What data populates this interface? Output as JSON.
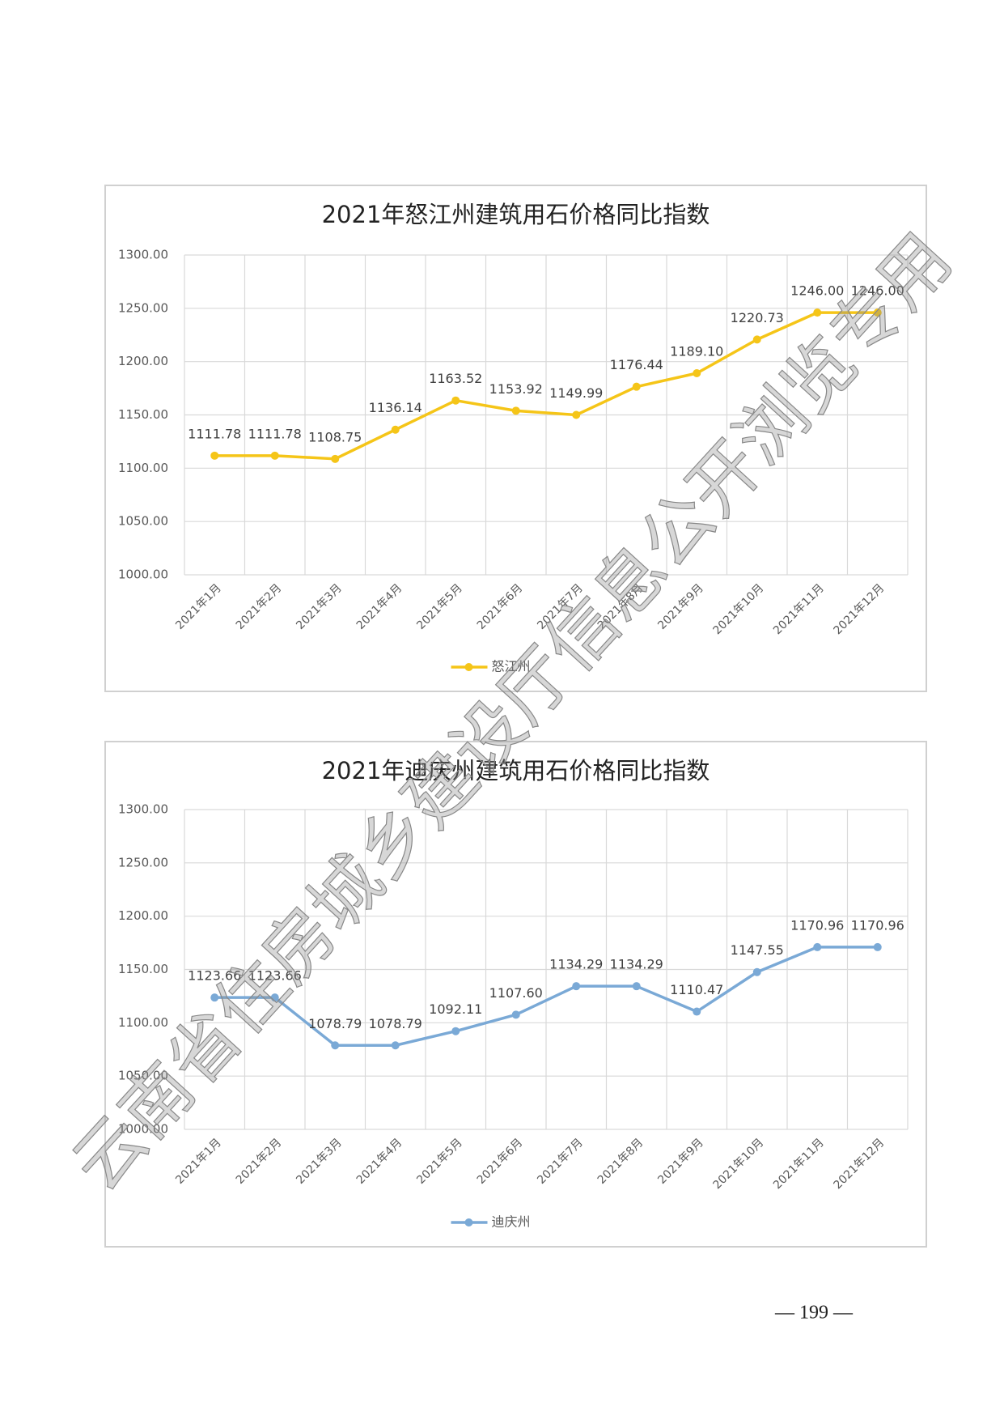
{
  "chart_data": [
    {
      "type": "line",
      "title": "2021年怒江州建筑用石价格同比指数",
      "categories": [
        "2021年1月",
        "2021年2月",
        "2021年3月",
        "2021年4月",
        "2021年5月",
        "2021年6月",
        "2021年7月",
        "2021年8月",
        "2021年9月",
        "2021年10月",
        "2021年11月",
        "2021年12月"
      ],
      "series": [
        {
          "name": "怒江州",
          "color": "#f5c518",
          "values": [
            1111.78,
            1111.78,
            1108.75,
            1136.14,
            1163.52,
            1153.92,
            1149.99,
            1176.44,
            1189.1,
            1220.73,
            1246.0,
            1246.0
          ],
          "value_labels": [
            "1111.78",
            "1111.78",
            "1108.75",
            "1136.14",
            "1163.52",
            "1153.92",
            "1149.99",
            "1176.44",
            "1189.10",
            "1220.73",
            "1246.00",
            "1246.00"
          ]
        }
      ],
      "ylim": [
        1000,
        1300
      ],
      "yticks": [
        {
          "value": 1000,
          "label": "1000.00"
        },
        {
          "value": 1050,
          "label": "1050.00"
        },
        {
          "value": 1100,
          "label": "1100.00"
        },
        {
          "value": 1150,
          "label": "1150.00"
        },
        {
          "value": 1200,
          "label": "1200.00"
        },
        {
          "value": 1250,
          "label": "1250.00"
        },
        {
          "value": 1300,
          "label": "1300.00"
        }
      ],
      "grid": true,
      "legend": "bottom"
    },
    {
      "type": "line",
      "title": "2021年迪庆州建筑用石价格同比指数",
      "categories": [
        "2021年1月",
        "2021年2月",
        "2021年3月",
        "2021年4月",
        "2021年5月",
        "2021年6月",
        "2021年7月",
        "2021年8月",
        "2021年9月",
        "2021年10月",
        "2021年11月",
        "2021年12月"
      ],
      "series": [
        {
          "name": "迪庆州",
          "color": "#7aa9d6",
          "values": [
            1123.66,
            1123.66,
            1078.79,
            1078.79,
            1092.11,
            1107.6,
            1134.29,
            1134.29,
            1110.47,
            1147.55,
            1170.96,
            1170.96
          ],
          "value_labels": [
            "1123.66",
            "1123.66",
            "1078.79",
            "1078.79",
            "1092.11",
            "1107.60",
            "1134.29",
            "1134.29",
            "1110.47",
            "1147.55",
            "1170.96",
            "1170.96"
          ]
        }
      ],
      "ylim": [
        1000,
        1300
      ],
      "yticks": [
        {
          "value": 1000,
          "label": "1000.00"
        },
        {
          "value": 1050,
          "label": "1050.00"
        },
        {
          "value": 1100,
          "label": "1100.00"
        },
        {
          "value": 1150,
          "label": "1150.00"
        },
        {
          "value": 1200,
          "label": "1200.00"
        },
        {
          "value": 1250,
          "label": "1250.00"
        },
        {
          "value": 1300,
          "label": "1300.00"
        }
      ],
      "grid": true,
      "legend": "bottom"
    }
  ],
  "watermark": "云南省住房城乡建设厅信息公开浏览专用",
  "page_number": "— 199 —"
}
